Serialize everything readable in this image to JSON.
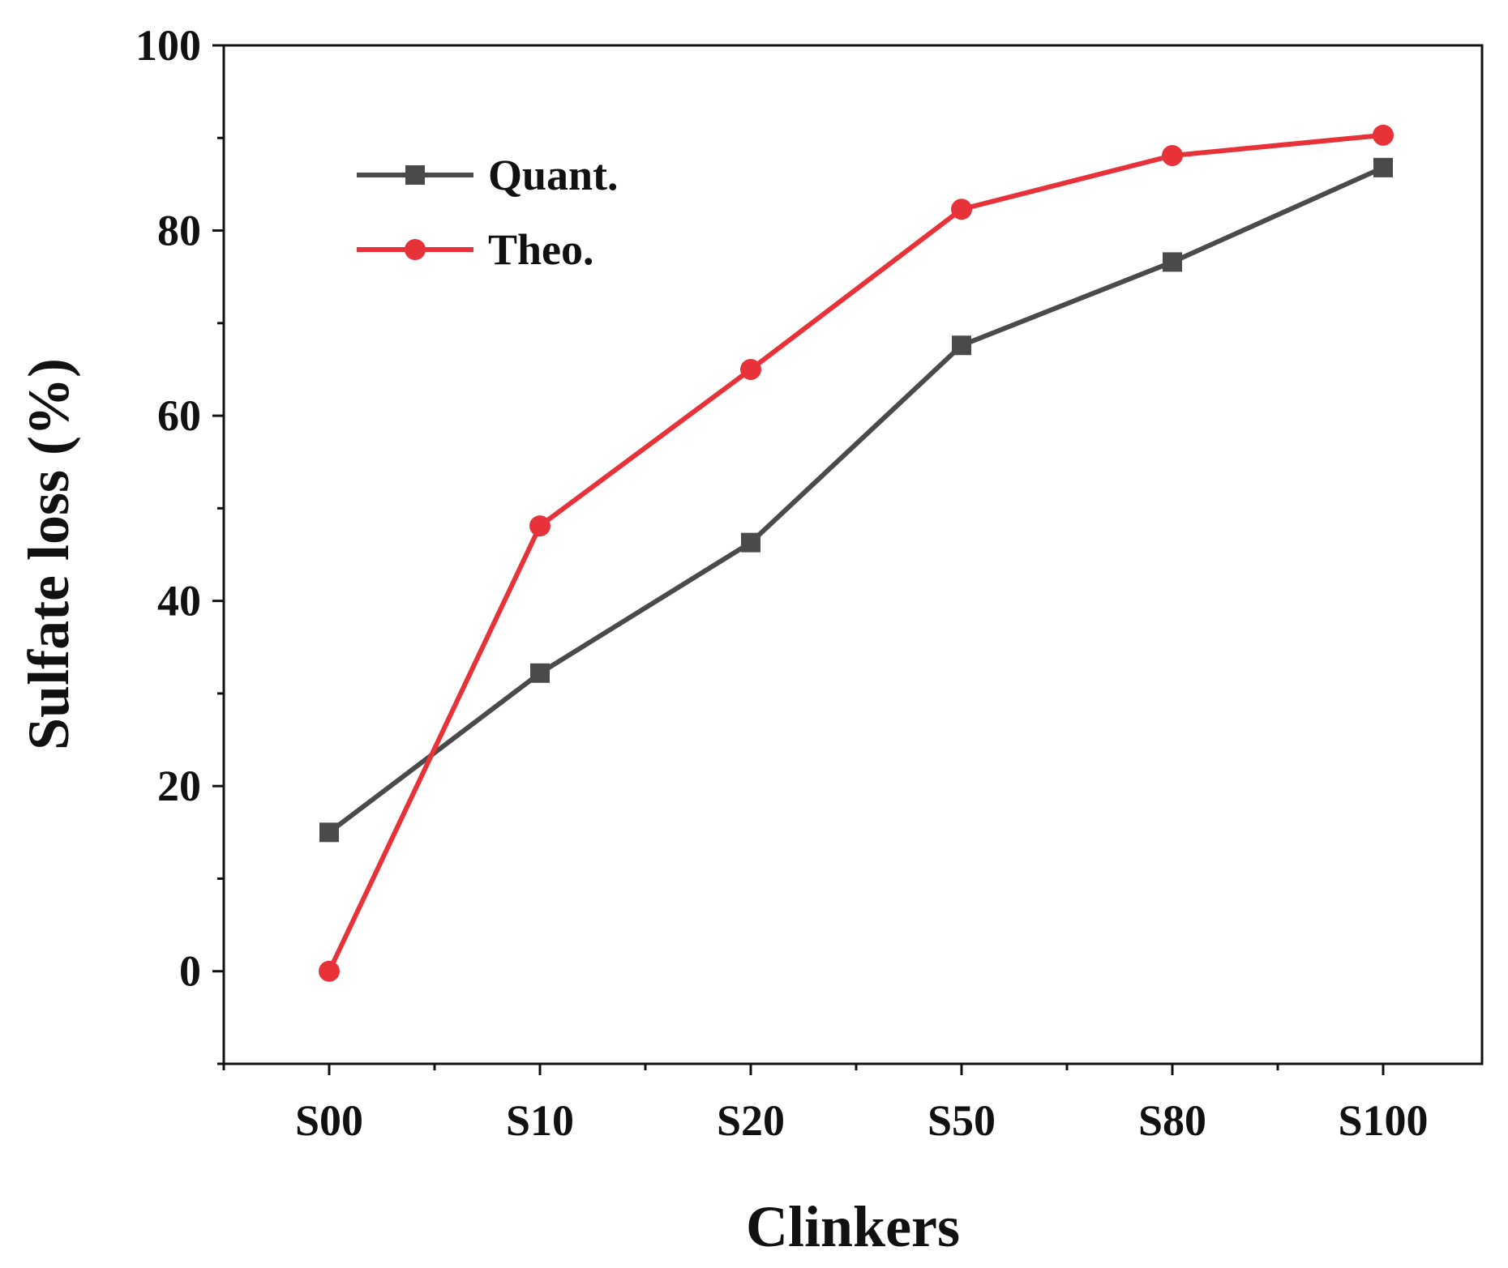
{
  "chart_data": {
    "type": "line",
    "title": "",
    "xlabel": "Clinkers",
    "ylabel": "Sulfate loss (%)",
    "categories": [
      "S00",
      "S10",
      "S20",
      "S50",
      "S80",
      "S100"
    ],
    "ylim": [
      -10,
      100
    ],
    "yticks": [
      0,
      20,
      40,
      60,
      80,
      100
    ],
    "grid": false,
    "legend_position": "top-left",
    "series": [
      {
        "name": "Quant.",
        "marker": "square",
        "color": "#4a4a4a",
        "values": [
          15,
          32.2,
          46.3,
          67.6,
          76.6,
          86.8
        ]
      },
      {
        "name": "Theo.",
        "marker": "circle",
        "color": "#e8323a",
        "values": [
          0,
          48.1,
          65,
          82.3,
          88.1,
          90.3
        ]
      }
    ]
  }
}
